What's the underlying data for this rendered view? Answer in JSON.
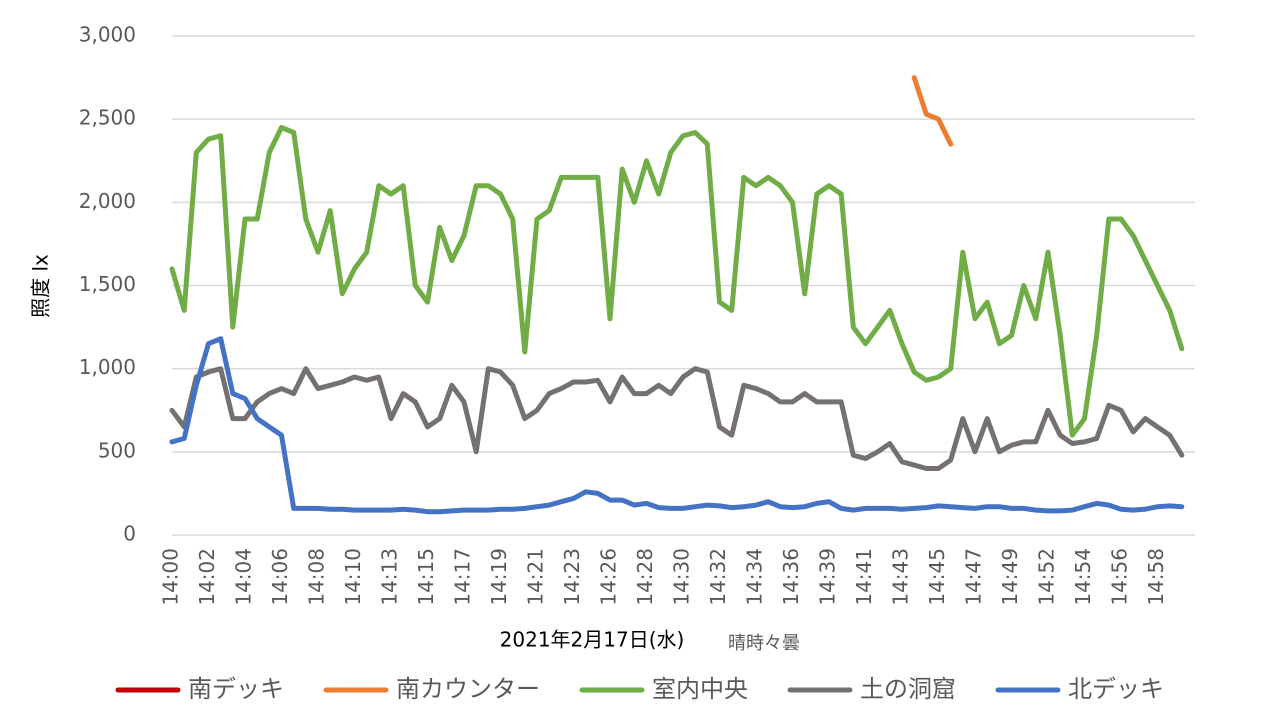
{
  "chart_data": {
    "type": "line",
    "y_title": "照度 lx",
    "x_title": "2021年2月17日(水)",
    "x_note": "晴時々曇",
    "ylim": [
      0,
      3000
    ],
    "yticks": [
      0,
      500,
      {
        "value": 1000,
        "label": "1,000"
      },
      {
        "value": 1500,
        "label": "1,500"
      },
      {
        "value": 2000,
        "label": "2,000"
      },
      {
        "value": 2500,
        "label": "2,500"
      },
      {
        "value": 3000,
        "label": "3,000"
      }
    ],
    "grid": true,
    "legend": "bottom",
    "categories": [
      "14:00",
      null,
      null,
      "14:02",
      null,
      null,
      "14:04",
      null,
      null,
      "14:06",
      null,
      null,
      "14:08",
      null,
      null,
      "14:10",
      null,
      null,
      "14:13",
      null,
      null,
      "14:15",
      null,
      null,
      "14:17",
      null,
      null,
      "14:19",
      null,
      null,
      "14:21",
      null,
      null,
      "14:23",
      null,
      null,
      "14:26",
      null,
      null,
      "14:28",
      null,
      null,
      "14:30",
      null,
      null,
      "14:32",
      null,
      null,
      "14:34",
      null,
      null,
      "14:36",
      null,
      null,
      "14:39",
      null,
      null,
      "14:41",
      null,
      null,
      "14:43",
      null,
      null,
      "14:45",
      null,
      null,
      "14:47",
      null,
      null,
      "14:49",
      null,
      null,
      "14:52",
      null,
      null,
      "14:54",
      null,
      null,
      "14:56",
      null,
      null,
      "14:58",
      null,
      null
    ],
    "series": [
      {
        "name": "南デッキ",
        "color": "#c00000",
        "values": [
          null,
          null,
          null,
          null,
          null,
          null,
          null,
          null,
          null,
          null,
          null,
          null,
          null,
          null,
          null,
          null,
          null,
          null,
          null,
          null,
          null,
          null,
          null,
          null,
          null,
          null,
          null,
          null,
          null,
          null,
          null,
          null,
          null,
          null,
          null,
          null,
          null,
          null,
          null,
          null,
          null,
          null,
          null,
          null,
          null,
          null,
          null,
          null,
          null,
          null,
          null,
          null,
          null,
          null,
          null,
          null,
          null,
          null,
          null,
          null,
          null,
          null,
          null,
          null,
          null,
          null,
          null,
          null,
          null,
          null,
          null,
          null,
          null,
          null,
          null,
          null,
          null,
          null,
          null,
          null,
          null,
          null,
          null,
          null
        ]
      },
      {
        "name": "南カウンター",
        "color": "#ed7d31",
        "values": [
          null,
          null,
          null,
          null,
          null,
          null,
          null,
          null,
          null,
          null,
          null,
          null,
          null,
          null,
          null,
          null,
          null,
          null,
          null,
          null,
          null,
          null,
          null,
          null,
          null,
          null,
          null,
          null,
          null,
          null,
          null,
          null,
          null,
          null,
          null,
          null,
          null,
          null,
          null,
          null,
          null,
          null,
          null,
          null,
          null,
          null,
          null,
          null,
          null,
          null,
          null,
          null,
          null,
          null,
          null,
          null,
          null,
          null,
          null,
          null,
          null,
          2750,
          2530,
          2500,
          2350,
          null,
          null,
          null,
          null,
          null,
          null,
          null,
          null,
          null,
          null,
          null,
          null,
          null,
          null,
          null,
          null,
          null,
          null,
          null
        ]
      },
      {
        "name": "室内中央",
        "color": "#70ad47",
        "values": [
          1600,
          1350,
          2300,
          2380,
          2400,
          1250,
          1900,
          1900,
          2300,
          2450,
          2420,
          1900,
          1700,
          1950,
          1450,
          1600,
          1700,
          2100,
          2050,
          2100,
          1500,
          1400,
          1850,
          1650,
          1800,
          2100,
          2100,
          2050,
          1900,
          1100,
          1900,
          1950,
          2150,
          2150,
          2150,
          2150,
          1300,
          2200,
          2000,
          2250,
          2050,
          2300,
          2400,
          2420,
          2350,
          1400,
          1350,
          2150,
          2100,
          2150,
          2100,
          2000,
          1450,
          2050,
          2100,
          2050,
          1250,
          1150,
          1250,
          1350,
          1150,
          980,
          930,
          950,
          1000,
          1700,
          1300,
          1400,
          1150,
          1200,
          1500,
          1300,
          1700,
          1200,
          600,
          700,
          1200,
          1900,
          1900,
          1800,
          1650,
          1500,
          1350,
          1120
        ]
      },
      {
        "name": "土の洞窟",
        "color": "#767171",
        "values": [
          750,
          650,
          950,
          980,
          1000,
          700,
          700,
          800,
          850,
          880,
          850,
          1000,
          880,
          900,
          920,
          950,
          930,
          950,
          700,
          850,
          800,
          650,
          700,
          900,
          800,
          500,
          1000,
          980,
          900,
          700,
          750,
          850,
          880,
          920,
          920,
          930,
          800,
          950,
          850,
          850,
          900,
          850,
          950,
          1000,
          980,
          650,
          600,
          900,
          880,
          850,
          800,
          800,
          850,
          800,
          800,
          800,
          480,
          460,
          500,
          550,
          440,
          420,
          400,
          400,
          450,
          700,
          500,
          700,
          500,
          540,
          560,
          560,
          750,
          600,
          550,
          560,
          580,
          780,
          750,
          620,
          700,
          650,
          600,
          480
        ]
      },
      {
        "name": "北デッキ",
        "color": "#4472c4",
        "values": [
          560,
          580,
          900,
          1150,
          1180,
          850,
          820,
          700,
          650,
          600,
          160,
          160,
          160,
          155,
          155,
          150,
          150,
          150,
          150,
          155,
          150,
          140,
          140,
          145,
          150,
          150,
          150,
          155,
          155,
          160,
          170,
          180,
          200,
          220,
          260,
          250,
          210,
          210,
          180,
          190,
          165,
          160,
          160,
          170,
          180,
          175,
          165,
          170,
          180,
          200,
          170,
          165,
          170,
          190,
          200,
          160,
          150,
          160,
          160,
          160,
          155,
          160,
          165,
          175,
          170,
          165,
          160,
          170,
          170,
          160,
          160,
          150,
          145,
          145,
          150,
          170,
          190,
          180,
          155,
          150,
          155,
          170,
          175,
          170
        ]
      }
    ]
  }
}
